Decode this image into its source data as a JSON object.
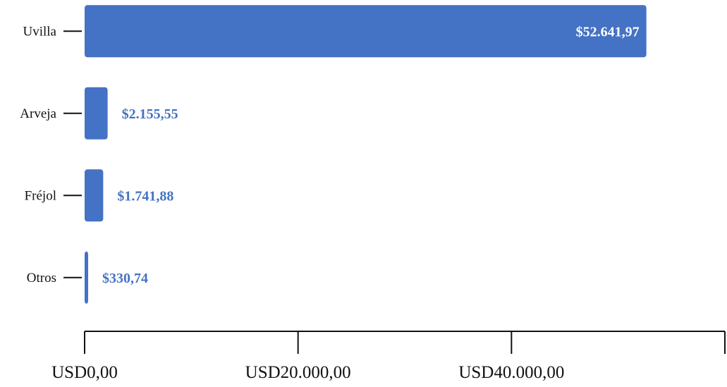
{
  "chart_data": {
    "type": "bar",
    "orientation": "horizontal",
    "categories": [
      "Uvilla",
      "Arveja",
      "Fréjol",
      "Otros"
    ],
    "values": [
      52641.97,
      2155.55,
      1741.88,
      330.74
    ],
    "value_labels": [
      "$52.641,97",
      "$2.155,55",
      "$1.741,88",
      "$330,74"
    ],
    "xlim": [
      0,
      60000
    ],
    "x_ticks": [
      0,
      20000,
      40000,
      60000
    ],
    "x_tick_labels": [
      "USD0,00",
      "USD20.000,00",
      "USD40.000,00",
      ""
    ],
    "title": "",
    "xlabel": "",
    "ylabel": "",
    "grid": false,
    "bar_color": "#4472c4",
    "inside_label_color": "#ffffff",
    "outside_label_color": "#4472c4"
  }
}
